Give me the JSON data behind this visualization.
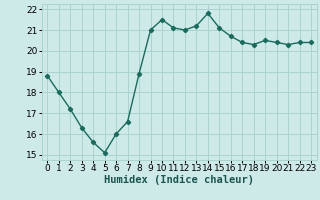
{
  "x": [
    0,
    1,
    2,
    3,
    4,
    5,
    6,
    7,
    8,
    9,
    10,
    11,
    12,
    13,
    14,
    15,
    16,
    17,
    18,
    19,
    20,
    21,
    22,
    23
  ],
  "y": [
    18.8,
    18.0,
    17.2,
    16.3,
    15.6,
    15.1,
    16.0,
    16.6,
    18.9,
    21.0,
    21.5,
    21.1,
    21.0,
    21.2,
    21.8,
    21.1,
    20.7,
    20.4,
    20.3,
    20.5,
    20.4,
    20.3,
    20.4,
    20.4
  ],
  "line_color": "#1a6b5e",
  "marker": "D",
  "marker_size": 2.2,
  "bg_color": "#ceeae8",
  "grid_color": "#aad4ce",
  "xlabel": "Humidex (Indice chaleur)",
  "xlim": [
    -0.5,
    23.5
  ],
  "ylim": [
    14.75,
    22.25
  ],
  "yticks": [
    15,
    16,
    17,
    18,
    19,
    20,
    21,
    22
  ],
  "xticks": [
    0,
    1,
    2,
    3,
    4,
    5,
    6,
    7,
    8,
    9,
    10,
    11,
    12,
    13,
    14,
    15,
    16,
    17,
    18,
    19,
    20,
    21,
    22,
    23
  ],
  "tick_fontsize": 6.5,
  "xlabel_fontsize": 7.5,
  "linewidth": 1.0
}
